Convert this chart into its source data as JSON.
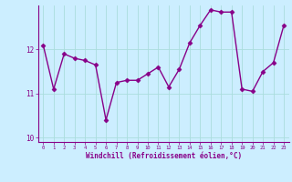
{
  "x": [
    0,
    1,
    2,
    3,
    4,
    5,
    6,
    7,
    8,
    9,
    10,
    11,
    12,
    13,
    14,
    15,
    16,
    17,
    18,
    19,
    20,
    21,
    22,
    23
  ],
  "y": [
    12.1,
    11.1,
    11.9,
    11.8,
    11.75,
    11.65,
    10.4,
    11.25,
    11.3,
    11.3,
    11.45,
    11.6,
    11.15,
    11.55,
    12.15,
    12.55,
    12.9,
    12.85,
    12.85,
    11.1,
    11.05,
    11.5,
    11.7,
    12.55
  ],
  "line_color": "#880088",
  "marker": "D",
  "marker_size": 2.5,
  "bg_color": "#cceeff",
  "grid_color": "#aadddd",
  "xlabel": "Windchill (Refroidissement éolien,°C)",
  "xlabel_color": "#880088",
  "tick_color": "#880088",
  "ylim": [
    9.9,
    13.0
  ],
  "xlim": [
    -0.5,
    23.5
  ],
  "yticks": [
    10,
    11,
    12
  ],
  "xticks": [
    0,
    1,
    2,
    3,
    4,
    5,
    6,
    7,
    8,
    9,
    10,
    11,
    12,
    13,
    14,
    15,
    16,
    17,
    18,
    19,
    20,
    21,
    22,
    23
  ],
  "line_width": 1.0
}
